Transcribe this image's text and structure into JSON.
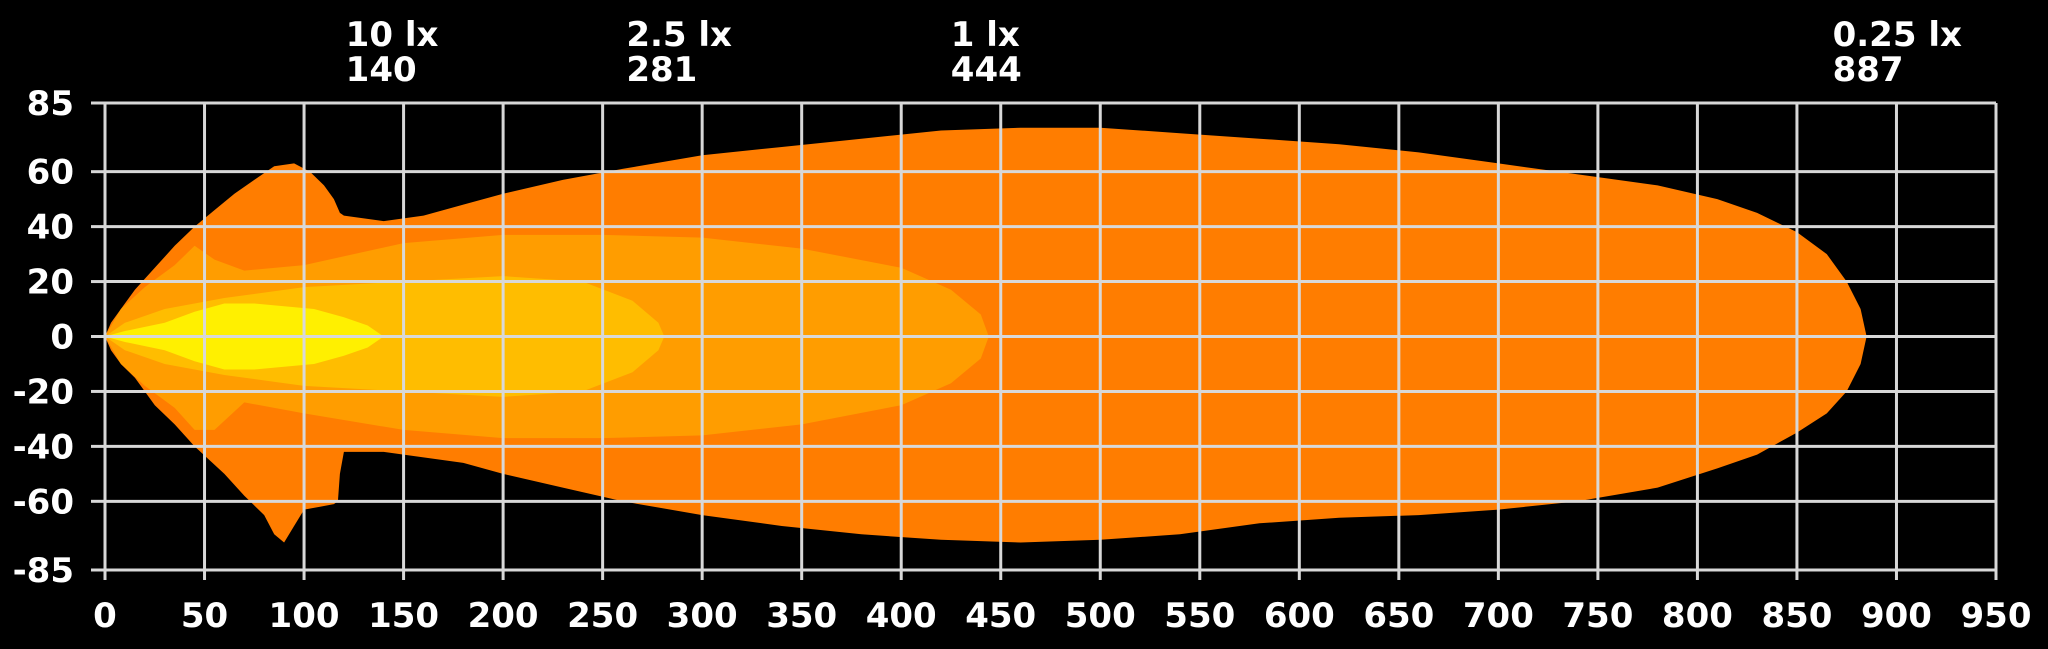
{
  "chart_data": {
    "type": "area",
    "title": "",
    "xlabel": "",
    "ylabel": "",
    "xlim": [
      0,
      950
    ],
    "ylim": [
      -85,
      85
    ],
    "x_ticks": [
      0,
      50,
      100,
      150,
      200,
      250,
      300,
      350,
      400,
      450,
      500,
      550,
      600,
      650,
      700,
      750,
      800,
      850,
      900,
      950
    ],
    "y_ticks": [
      85,
      60,
      40,
      20,
      0,
      -20,
      -40,
      -60,
      -85
    ],
    "grid": true,
    "background": "#000000",
    "grid_color": "#d8d8d8",
    "lux_markers": [
      {
        "lux_label": "10 lx",
        "distance_label": "140",
        "x": 140
      },
      {
        "lux_label": "2.5 lx",
        "distance_label": "281",
        "x": 281
      },
      {
        "lux_label": "1 lx",
        "distance_label": "444",
        "x": 444
      },
      {
        "lux_label": "0.25 lx",
        "distance_label": "887",
        "x": 887
      }
    ],
    "series": [
      {
        "level": "0.25 lx",
        "color": "#ff7d00",
        "outline": [
          [
            0,
            0
          ],
          [
            3,
            5
          ],
          [
            8,
            10
          ],
          [
            15,
            17
          ],
          [
            25,
            25
          ],
          [
            35,
            33
          ],
          [
            45,
            40
          ],
          [
            55,
            46
          ],
          [
            65,
            52
          ],
          [
            75,
            57
          ],
          [
            85,
            62
          ],
          [
            95,
            63
          ],
          [
            103,
            60
          ],
          [
            110,
            55
          ],
          [
            115,
            50
          ],
          [
            118,
            45
          ],
          [
            120,
            44
          ],
          [
            140,
            42
          ],
          [
            160,
            44
          ],
          [
            180,
            48
          ],
          [
            200,
            52
          ],
          [
            230,
            57
          ],
          [
            260,
            61
          ],
          [
            300,
            66
          ],
          [
            340,
            69
          ],
          [
            380,
            72
          ],
          [
            420,
            75
          ],
          [
            460,
            76
          ],
          [
            500,
            76
          ],
          [
            540,
            74
          ],
          [
            580,
            72
          ],
          [
            620,
            70
          ],
          [
            660,
            67
          ],
          [
            700,
            63
          ],
          [
            740,
            59
          ],
          [
            780,
            55
          ],
          [
            810,
            50
          ],
          [
            830,
            45
          ],
          [
            850,
            38
          ],
          [
            865,
            30
          ],
          [
            875,
            20
          ],
          [
            882,
            10
          ],
          [
            885,
            0
          ],
          [
            882,
            -10
          ],
          [
            875,
            -20
          ],
          [
            865,
            -28
          ],
          [
            850,
            -35
          ],
          [
            830,
            -43
          ],
          [
            810,
            -48
          ],
          [
            780,
            -55
          ],
          [
            740,
            -60
          ],
          [
            700,
            -63
          ],
          [
            660,
            -65
          ],
          [
            620,
            -66
          ],
          [
            580,
            -68
          ],
          [
            540,
            -72
          ],
          [
            500,
            -74
          ],
          [
            460,
            -75
          ],
          [
            420,
            -74
          ],
          [
            380,
            -72
          ],
          [
            340,
            -69
          ],
          [
            300,
            -65
          ],
          [
            260,
            -60
          ],
          [
            230,
            -55
          ],
          [
            200,
            -50
          ],
          [
            180,
            -46
          ],
          [
            160,
            -44
          ],
          [
            140,
            -42
          ],
          [
            120,
            -42
          ],
          [
            118,
            -50
          ],
          [
            117,
            -60
          ],
          [
            115,
            -61
          ],
          [
            108,
            -62
          ],
          [
            100,
            -63
          ],
          [
            95,
            -69
          ],
          [
            90,
            -75
          ],
          [
            85,
            -72
          ],
          [
            80,
            -65
          ],
          [
            70,
            -58
          ],
          [
            60,
            -50
          ],
          [
            45,
            -40
          ],
          [
            35,
            -32
          ],
          [
            25,
            -25
          ],
          [
            15,
            -15
          ],
          [
            8,
            -10
          ],
          [
            3,
            -5
          ]
        ]
      },
      {
        "level": "1 lx",
        "color": "#ff9d00",
        "outline": [
          [
            0,
            0
          ],
          [
            8,
            10
          ],
          [
            20,
            18
          ],
          [
            35,
            26
          ],
          [
            45,
            33
          ],
          [
            55,
            28
          ],
          [
            70,
            24
          ],
          [
            100,
            26
          ],
          [
            150,
            34
          ],
          [
            200,
            37
          ],
          [
            250,
            37
          ],
          [
            300,
            36
          ],
          [
            350,
            32
          ],
          [
            400,
            25
          ],
          [
            425,
            17
          ],
          [
            440,
            8
          ],
          [
            444,
            0
          ],
          [
            440,
            -8
          ],
          [
            425,
            -17
          ],
          [
            400,
            -25
          ],
          [
            350,
            -32
          ],
          [
            300,
            -36
          ],
          [
            250,
            -37
          ],
          [
            200,
            -37
          ],
          [
            150,
            -34
          ],
          [
            100,
            -28
          ],
          [
            70,
            -24
          ],
          [
            55,
            -34
          ],
          [
            45,
            -34
          ],
          [
            35,
            -26
          ],
          [
            20,
            -18
          ],
          [
            8,
            -10
          ]
        ]
      },
      {
        "level": "2.5 lx",
        "color": "#ffbd00",
        "outline": [
          [
            0,
            0
          ],
          [
            10,
            5
          ],
          [
            30,
            10
          ],
          [
            60,
            14
          ],
          [
            100,
            18
          ],
          [
            150,
            20
          ],
          [
            200,
            22
          ],
          [
            240,
            20
          ],
          [
            265,
            13
          ],
          [
            278,
            5
          ],
          [
            281,
            0
          ],
          [
            278,
            -5
          ],
          [
            265,
            -13
          ],
          [
            240,
            -20
          ],
          [
            200,
            -22
          ],
          [
            150,
            -20
          ],
          [
            100,
            -18
          ],
          [
            60,
            -14
          ],
          [
            30,
            -10
          ],
          [
            10,
            -5
          ]
        ]
      },
      {
        "level": "10 lx",
        "color": "#fff000",
        "outline": [
          [
            0,
            0
          ],
          [
            10,
            2
          ],
          [
            30,
            5
          ],
          [
            45,
            9
          ],
          [
            60,
            12
          ],
          [
            75,
            12
          ],
          [
            90,
            11
          ],
          [
            105,
            10
          ],
          [
            120,
            7
          ],
          [
            132,
            4
          ],
          [
            140,
            0
          ],
          [
            132,
            -4
          ],
          [
            120,
            -7
          ],
          [
            105,
            -10
          ],
          [
            90,
            -11
          ],
          [
            75,
            -12
          ],
          [
            60,
            -12
          ],
          [
            45,
            -9
          ],
          [
            30,
            -5
          ],
          [
            10,
            -2
          ]
        ]
      }
    ]
  }
}
